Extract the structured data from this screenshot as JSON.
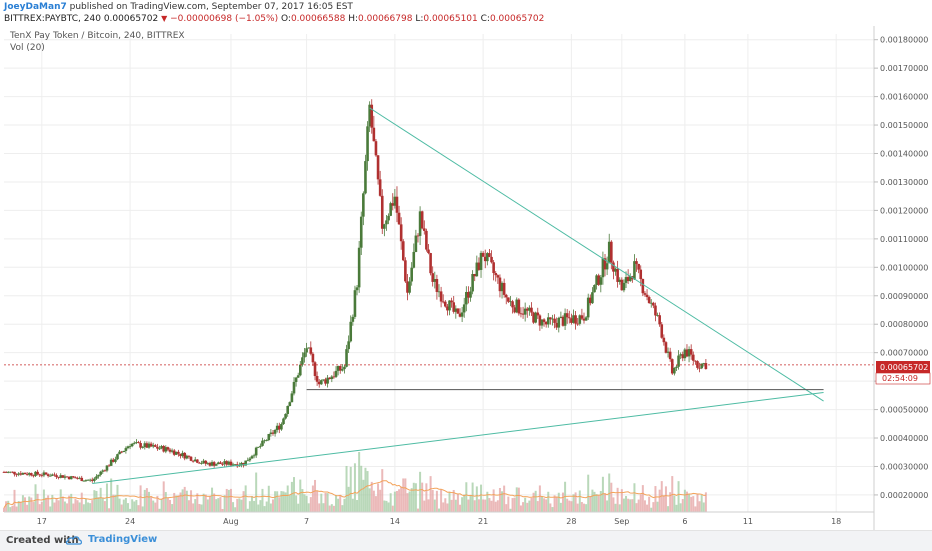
{
  "header": {
    "author": "JoeyDaMan7",
    "published_text": "published on TradingView.com, September 07, 2017 16:05 EST",
    "symbol": "BITTREX:PAYBTC, 240",
    "last_price": "0.00065702",
    "change": "−0.00000698 (−1.05%)",
    "open_label": "O:",
    "open": "0.00066588",
    "high_label": "H:",
    "high": "0.00066798",
    "low_label": "L:",
    "low": "0.00065101",
    "close_label": "C:",
    "close": "0.00065702"
  },
  "footer": {
    "created_with": "Created with",
    "brand": "TradingView"
  },
  "colors": {
    "up": "#4a7a3a",
    "down": "#b03030",
    "trendline": "#4dbba3",
    "support": "#555555",
    "vol_ma": "#f3a35b",
    "price_line": "#c62828"
  },
  "chart_data": {
    "type": "candlestick",
    "title": "TenX Pay Token / Bitcoin, 240, BITTREX",
    "indicator_label": "Vol (20)",
    "x_ticks": [
      "17",
      "24",
      "Aug",
      "7",
      "14",
      "21",
      "28",
      "Sep",
      "6",
      "11",
      "18"
    ],
    "y_ticks": [
      "0.00180000",
      "0.00170000",
      "0.00160000",
      "0.00150000",
      "0.00140000",
      "0.00130000",
      "0.00120000",
      "0.00110000",
      "0.00100000",
      "0.00090000",
      "0.00080000",
      "0.00070000",
      "0.00060000",
      "0.00050000",
      "0.00040000",
      "0.00030000",
      "0.00020000"
    ],
    "ylim": [
      0.00014,
      0.00182
    ],
    "last_price_label": "0.00065702",
    "countdown_label": "02:54:09",
    "price_path": [
      [
        "2017-07-14",
        0.00028
      ],
      [
        "2017-07-18",
        0.00027
      ],
      [
        "2017-07-21",
        0.00025
      ],
      [
        "2017-07-24",
        0.00038
      ],
      [
        "2017-07-27",
        0.00036
      ],
      [
        "2017-07-30",
        0.00031
      ],
      [
        "2017-08-02",
        0.00031
      ],
      [
        "2017-08-05",
        0.00045
      ],
      [
        "2017-08-07",
        0.00072
      ],
      [
        "2017-08-08",
        0.00059
      ],
      [
        "2017-08-10",
        0.00065
      ],
      [
        "2017-08-11",
        0.00095
      ],
      [
        "2017-08-12",
        0.00156
      ],
      [
        "2017-08-13",
        0.00115
      ],
      [
        "2017-08-14",
        0.00125
      ],
      [
        "2017-08-15",
        0.00091
      ],
      [
        "2017-08-16",
        0.00118
      ],
      [
        "2017-08-17",
        0.00095
      ],
      [
        "2017-08-19",
        0.00082
      ],
      [
        "2017-08-21",
        0.00105
      ],
      [
        "2017-08-23",
        0.00088
      ],
      [
        "2017-08-26",
        0.0008
      ],
      [
        "2017-08-29",
        0.00083
      ],
      [
        "2017-08-31",
        0.00106
      ],
      [
        "2017-09-01",
        0.00092
      ],
      [
        "2017-09-02",
        0.001
      ],
      [
        "2017-09-03",
        0.0009
      ],
      [
        "2017-09-04",
        0.0008
      ],
      [
        "2017-09-05",
        0.00063
      ],
      [
        "2017-09-06",
        0.00071
      ],
      [
        "2017-09-07",
        0.00066
      ]
    ],
    "annotations": {
      "descending_trendline": [
        [
          "2017-08-12",
          0.00156
        ],
        [
          "2017-09-17",
          0.00053
        ]
      ],
      "ascending_trendline": [
        [
          "2017-07-21",
          0.00024
        ],
        [
          "2017-09-17",
          0.00056
        ]
      ],
      "support_line": [
        [
          "2017-08-07",
          0.00057
        ],
        [
          "2017-09-17",
          0.00057
        ]
      ]
    }
  }
}
